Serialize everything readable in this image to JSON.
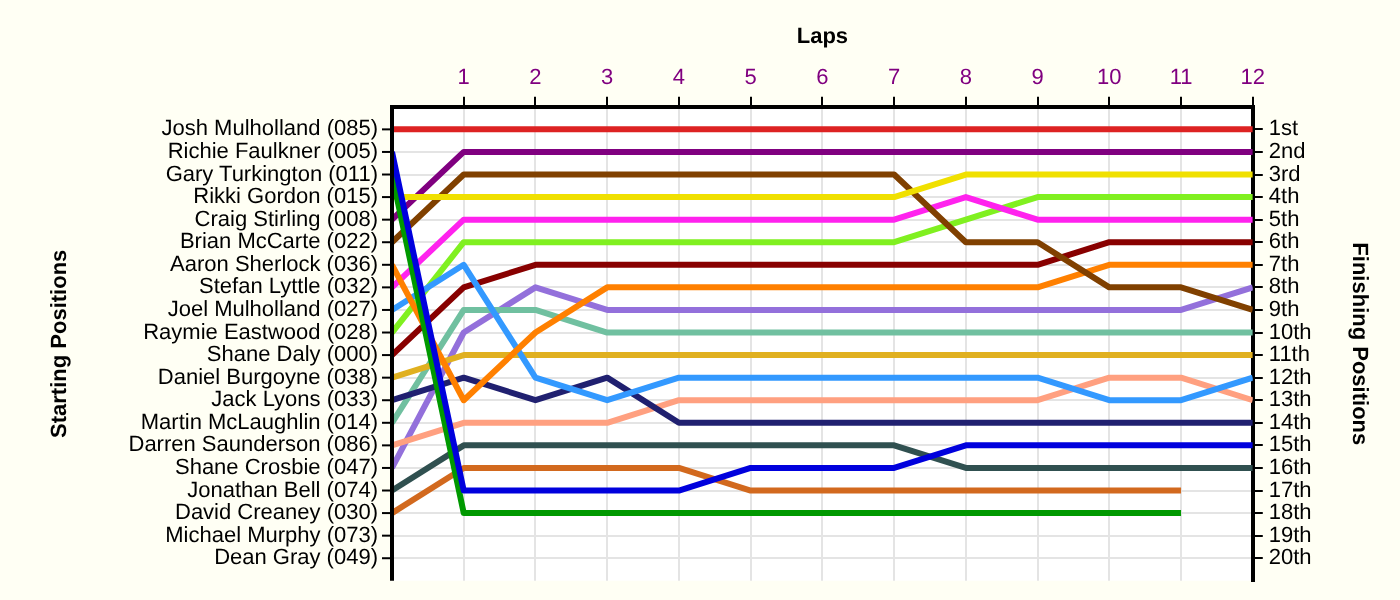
{
  "chart_data": {
    "type": "line",
    "xlabel": "Laps",
    "ylabel": "Finishing Positions",
    "x": [
      0,
      1,
      2,
      3,
      4,
      5,
      6,
      7,
      8,
      9,
      10,
      11,
      12
    ],
    "xlim": [
      0,
      12
    ],
    "xticks": [
      1,
      2,
      3,
      4,
      5,
      6,
      7,
      8,
      9,
      10,
      11,
      12
    ],
    "ylim": [
      21,
      0
    ],
    "yticks": [
      {
        "value": 1,
        "label": "1st"
      },
      {
        "value": 2,
        "label": "2nd"
      },
      {
        "value": 3,
        "label": "3rd"
      },
      {
        "value": 4,
        "label": "4th"
      },
      {
        "value": 5,
        "label": "5th"
      },
      {
        "value": 6,
        "label": "6th"
      },
      {
        "value": 7,
        "label": "7th"
      },
      {
        "value": 8,
        "label": "8th"
      },
      {
        "value": 9,
        "label": "9th"
      },
      {
        "value": 10,
        "label": "10th"
      },
      {
        "value": 11,
        "label": "11th"
      },
      {
        "value": 12,
        "label": "12th"
      },
      {
        "value": 13,
        "label": "13th"
      },
      {
        "value": 14,
        "label": "14th"
      },
      {
        "value": 15,
        "label": "15th"
      },
      {
        "value": 16,
        "label": "16th"
      },
      {
        "value": 17,
        "label": "17th"
      },
      {
        "value": 18,
        "label": "18th"
      },
      {
        "value": 19,
        "label": "19th"
      },
      {
        "value": 20,
        "label": "20th"
      }
    ],
    "annotations": [
      "Starting Positions",
      "Josh Mulholland (085)",
      "Richie Faulkner (005)",
      "Gary Turkington (011)",
      "Rikki Gordon (015)",
      "Craig Stirling (008)",
      "Brian McCarte (022)",
      "Aaron Sherlock (036)",
      "Stefan Lyttle (032)",
      "Joel Mulholland (027)",
      "Raymie Eastwood (028)",
      "Shane Daly (000)",
      "Daniel Burgoyne (038)",
      "Jack Lyons (033)",
      "Martin McLaughlin (014)",
      "Darren Saunderson (086)",
      "Shane Crosbie (047)",
      "Jonathan Bell (074)",
      "David Creaney (030)",
      "Michael Murphy (073)",
      "Dean Gray (049)"
    ],
    "grid": true,
    "marker": "none",
    "line_style": "solid",
    "series": [
      {
        "color": "#dd2222",
        "values": [
          1,
          1,
          1,
          1,
          1,
          1,
          1,
          1,
          1,
          1,
          1,
          1,
          1
        ]
      },
      {
        "color": "#0000dd",
        "values": [
          2,
          17,
          17,
          17,
          17,
          16,
          16,
          16,
          15,
          15,
          15,
          15,
          15
        ]
      },
      {
        "color": "#009900",
        "values": [
          3,
          18,
          18,
          18,
          18,
          18,
          18,
          18,
          18,
          18,
          18,
          18,
          null
        ]
      },
      {
        "color": "#f0e000",
        "values": [
          4,
          4,
          4,
          4,
          4,
          4,
          4,
          4,
          3,
          3,
          3,
          3,
          3
        ]
      },
      {
        "color": "#800080",
        "values": [
          5,
          2,
          2,
          2,
          2,
          2,
          2,
          2,
          2,
          2,
          2,
          2,
          2
        ]
      },
      {
        "color": "#804000",
        "values": [
          6,
          3,
          3,
          3,
          3,
          3,
          3,
          3,
          6,
          6,
          8,
          8,
          9
        ]
      },
      {
        "color": "#ff8000",
        "values": [
          7,
          13,
          10,
          8,
          8,
          8,
          8,
          8,
          8,
          8,
          7,
          7,
          7
        ]
      },
      {
        "color": "#ff22ee",
        "values": [
          8,
          5,
          5,
          5,
          5,
          5,
          5,
          5,
          4,
          5,
          5,
          5,
          5
        ]
      },
      {
        "color": "#3399ff",
        "values": [
          9,
          7,
          12,
          13,
          12,
          12,
          12,
          12,
          12,
          12,
          13,
          13,
          12
        ]
      },
      {
        "color": "#80f020",
        "values": [
          10,
          6,
          6,
          6,
          6,
          6,
          6,
          6,
          5,
          4,
          4,
          4,
          4
        ]
      },
      {
        "color": "#880000",
        "values": [
          11,
          8,
          7,
          7,
          7,
          7,
          7,
          7,
          7,
          7,
          6,
          6,
          6
        ]
      },
      {
        "color": "#e0b020",
        "values": [
          12,
          11,
          11,
          11,
          11,
          11,
          11,
          11,
          11,
          11,
          11,
          11,
          11
        ]
      },
      {
        "color": "#202070",
        "values": [
          13,
          12,
          13,
          12,
          14,
          14,
          14,
          14,
          14,
          14,
          14,
          14,
          14
        ]
      },
      {
        "color": "#70c0a0",
        "values": [
          14,
          9,
          9,
          10,
          10,
          10,
          10,
          10,
          10,
          10,
          10,
          10,
          10
        ]
      },
      {
        "color": "#ffa080",
        "values": [
          15,
          14,
          14,
          14,
          13,
          13,
          13,
          13,
          13,
          13,
          12,
          12,
          13
        ]
      },
      {
        "color": "#9370db",
        "values": [
          16,
          10,
          8,
          9,
          9,
          9,
          9,
          9,
          9,
          9,
          9,
          9,
          8
        ]
      },
      {
        "color": "#305050",
        "values": [
          17,
          15,
          15,
          15,
          15,
          15,
          15,
          15,
          16,
          16,
          16,
          16,
          16
        ]
      },
      {
        "color": "#d2691e",
        "values": [
          18,
          16,
          16,
          16,
          16,
          17,
          17,
          17,
          17,
          17,
          17,
          17,
          null
        ]
      }
    ]
  }
}
